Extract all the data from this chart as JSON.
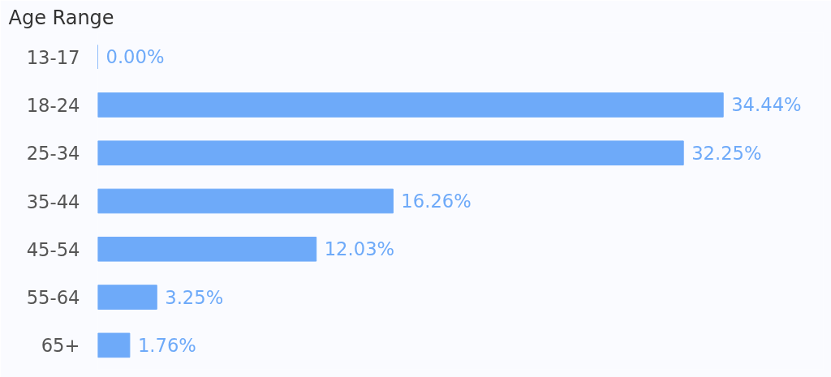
{
  "chart_data": {
    "type": "bar",
    "orientation": "horizontal",
    "title": "Age Range",
    "categories": [
      "13-17",
      "18-24",
      "25-34",
      "35-44",
      "45-54",
      "55-64",
      "65+"
    ],
    "values": [
      0.0,
      34.44,
      32.25,
      16.26,
      12.03,
      3.25,
      1.76
    ],
    "value_labels": [
      "0.00%",
      "34.44%",
      "32.25%",
      "16.26%",
      "12.03%",
      "3.25%",
      "1.76%"
    ],
    "color": "#6eaaf9"
  }
}
